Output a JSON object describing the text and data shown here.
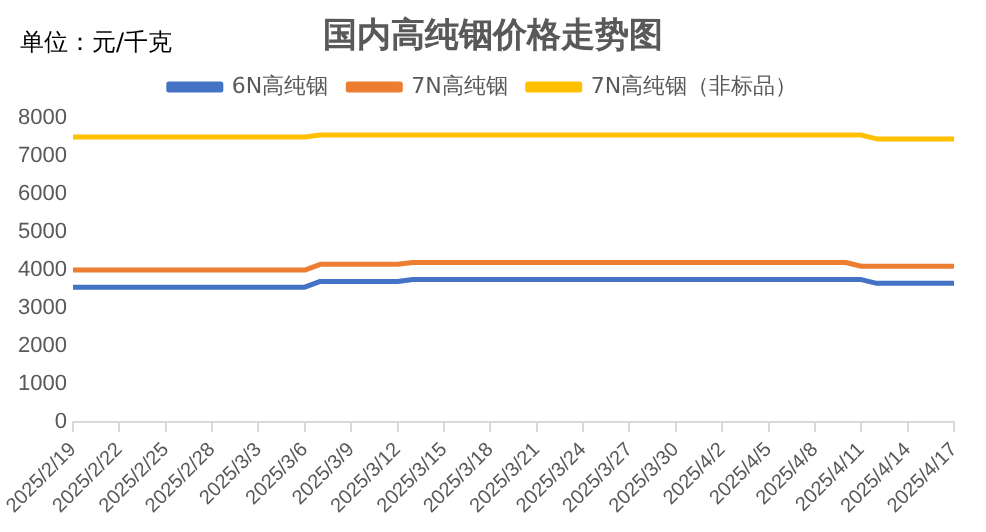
{
  "chart_data": {
    "type": "line",
    "title": "国内高纯铟价格走势图",
    "ylabel": "单位：元/千克",
    "x": [
      "2025-02-19",
      "2025-03-06",
      "2025-03-07",
      "2025-03-12",
      "2025-03-13",
      "2025-04-10",
      "2025-04-11",
      "2025-04-12",
      "2025-04-17"
    ],
    "series": [
      {
        "name": "6N高纯铟",
        "color": "#4472c4",
        "values": [
          3550,
          3550,
          3700,
          3700,
          3750,
          3750,
          3750,
          3650,
          3650
        ]
      },
      {
        "name": "7N高纯铟",
        "color": "#ed7d31",
        "values": [
          4000,
          4000,
          4150,
          4150,
          4200,
          4200,
          4100,
          4100,
          4100
        ]
      },
      {
        "name": "7N高纯铟（非标品）",
        "color": "#ffc000",
        "values": [
          7500,
          7500,
          7550,
          7550,
          7550,
          7550,
          7550,
          7450,
          7450
        ]
      }
    ],
    "ylim": [
      0,
      8000
    ],
    "yticks": [
      0,
      1000,
      2000,
      3000,
      4000,
      5000,
      6000,
      7000,
      8000
    ],
    "xlim": [
      "2025-02-19",
      "2025-04-17"
    ],
    "xticks": [
      {
        "value": "2025-02-19",
        "label": "2025/2/19"
      },
      {
        "value": "2025-02-22",
        "label": "2025/2/22"
      },
      {
        "value": "2025-02-25",
        "label": "2025/2/25"
      },
      {
        "value": "2025-02-28",
        "label": "2025/2/28"
      },
      {
        "value": "2025-03-03",
        "label": "2025/3/3"
      },
      {
        "value": "2025-03-06",
        "label": "2025/3/6"
      },
      {
        "value": "2025-03-09",
        "label": "2025/3/9"
      },
      {
        "value": "2025-03-12",
        "label": "2025/3/12"
      },
      {
        "value": "2025-03-15",
        "label": "2025/3/15"
      },
      {
        "value": "2025-03-18",
        "label": "2025/3/18"
      },
      {
        "value": "2025-03-21",
        "label": "2025/3/21"
      },
      {
        "value": "2025-03-24",
        "label": "2025/3/24"
      },
      {
        "value": "2025-03-27",
        "label": "2025/3/27"
      },
      {
        "value": "2025-03-30",
        "label": "2025/3/30"
      },
      {
        "value": "2025-04-02",
        "label": "2025/4/2"
      },
      {
        "value": "2025-04-05",
        "label": "2025/4/5"
      },
      {
        "value": "2025-04-08",
        "label": "2025/4/8"
      },
      {
        "value": "2025-04-11",
        "label": "2025/4/11"
      },
      {
        "value": "2025-04-14",
        "label": "2025/4/14"
      },
      {
        "value": "2025-04-17",
        "label": "2025/4/17"
      }
    ],
    "legend": "top",
    "grid": false,
    "marker": "none",
    "line_style": "solid"
  }
}
